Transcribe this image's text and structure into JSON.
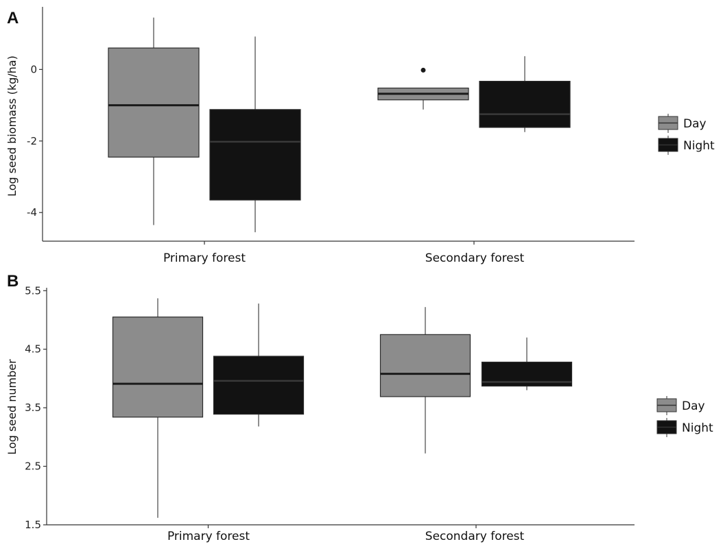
{
  "colors": {
    "day": "#8c8c8c",
    "night": "#121212",
    "axis": "#333333",
    "outline": "#2a2a2a"
  },
  "chart_data": [
    {
      "type": "boxplot",
      "panel_label": "A",
      "ylabel": "Log seed biomass (kg/ha)",
      "categories": [
        "Primary forest",
        "Secondary forest"
      ],
      "ylim": [
        -4.8,
        1.75
      ],
      "yticks": [
        0,
        -2,
        -4
      ],
      "ytick_labels": [
        "0",
        "-2",
        "-4"
      ],
      "legend": [
        "Day",
        "Night"
      ],
      "legend_position": "right",
      "series": [
        {
          "name": "Day",
          "boxes": [
            {
              "whisker_low": -4.35,
              "q1": -2.45,
              "median": -1.0,
              "q3": 0.6,
              "whisker_high": 1.45,
              "outliers": []
            },
            {
              "whisker_low": -1.12,
              "q1": -0.85,
              "median": -0.68,
              "q3": -0.52,
              "whisker_high": -0.52,
              "outliers": [
                -0.02
              ]
            }
          ]
        },
        {
          "name": "Night",
          "boxes": [
            {
              "whisker_low": -4.55,
              "q1": -3.65,
              "median": -2.02,
              "q3": -1.12,
              "whisker_high": 0.92,
              "outliers": []
            },
            {
              "whisker_low": -1.75,
              "q1": -1.62,
              "median": -1.25,
              "q3": -0.33,
              "whisker_high": 0.37,
              "outliers": []
            }
          ]
        }
      ]
    },
    {
      "type": "boxplot",
      "panel_label": "B",
      "ylabel": "Log seed number",
      "categories": [
        "Primary forest",
        "Secondary forest"
      ],
      "ylim": [
        1.5,
        5.55
      ],
      "yticks": [
        5.5,
        4.5,
        3.5,
        2.5,
        1.5
      ],
      "ytick_labels": [
        "5.5",
        "4.5",
        "3.5",
        "2.5",
        "1.5"
      ],
      "legend": [
        "Day",
        "Night"
      ],
      "legend_position": "right",
      "series": [
        {
          "name": "Day",
          "boxes": [
            {
              "whisker_low": 1.62,
              "q1": 3.34,
              "median": 3.91,
              "q3": 5.05,
              "whisker_high": 5.37,
              "outliers": []
            },
            {
              "whisker_low": 2.72,
              "q1": 3.69,
              "median": 4.08,
              "q3": 4.75,
              "whisker_high": 5.22,
              "outliers": []
            }
          ]
        },
        {
          "name": "Night",
          "boxes": [
            {
              "whisker_low": 3.18,
              "q1": 3.39,
              "median": 3.96,
              "q3": 4.38,
              "whisker_high": 5.28,
              "outliers": []
            },
            {
              "whisker_low": 3.8,
              "q1": 3.87,
              "median": 3.94,
              "q3": 4.28,
              "whisker_high": 4.7,
              "outliers": []
            }
          ]
        }
      ]
    }
  ]
}
